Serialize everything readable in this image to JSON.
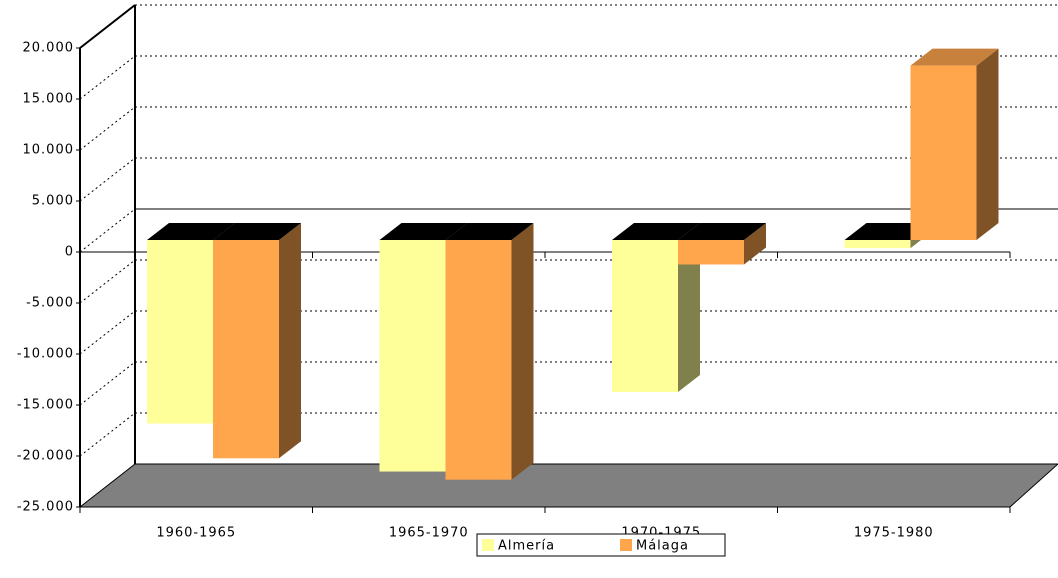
{
  "chart_data": {
    "type": "bar3d",
    "categories": [
      "1960-1965",
      "1965-1970",
      "1970-1975",
      "1975-1980"
    ],
    "series": [
      {
        "name": "Almería",
        "color": "#ffff99",
        "values": [
          -18000,
          -22700,
          -14900,
          -800
        ]
      },
      {
        "name": "Málaga",
        "color": "#ffa64d",
        "values": [
          -21400,
          -23500,
          -2400,
          17100
        ]
      }
    ],
    "ylim": [
      -25000,
      20000
    ],
    "yticks": [
      {
        "value": -25000,
        "label": "-25.000"
      },
      {
        "value": -20000,
        "label": "-20.000"
      },
      {
        "value": -15000,
        "label": "-15.000"
      },
      {
        "value": -10000,
        "label": "-10.000"
      },
      {
        "value": -5000,
        "label": "-5.000"
      },
      0,
      {
        "value": 5000,
        "label": "5.000"
      },
      {
        "value": 10000,
        "label": "10.000"
      },
      {
        "value": 15000,
        "label": "15.000"
      },
      {
        "value": 20000,
        "label": "20.000"
      }
    ],
    "grid": true,
    "legend": "bottom"
  }
}
